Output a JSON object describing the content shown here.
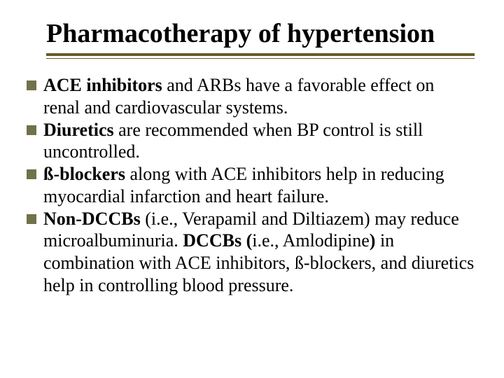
{
  "slide": {
    "title": "Pharmacotherapy of hypertension",
    "title_fontsize": 38,
    "title_color": "#000000",
    "rule_color": "#6b5b26",
    "bullet_marker_color": "#71714b",
    "background_color": "#ffffff",
    "body_fontsize": 26,
    "bullets": [
      {
        "lead_bold": "ACE inhibitors ",
        "rest": "and ARBs have a favorable effect on renal and cardiovascular systems."
      },
      {
        "lead_bold": "Diuretics ",
        "rest": "are recommended when BP control is still uncontrolled."
      },
      {
        "lead_bold": "ß-blockers ",
        "rest": "along with ACE inhibitors help in reducing myocardial infarction and heart failure."
      },
      {
        "lead_bold": "Non-DCCBs ",
        "mid1": "(i.e., Verapamil and Diltiazem) may reduce microalbuminuria. ",
        "mid_bold": "DCCBs (",
        "mid2": "i.e., Amlodipine",
        "close_bold": ")",
        "rest": " in combination with ACE inhibitors, ß-blockers, and diuretics help in controlling blood pressure."
      }
    ]
  }
}
